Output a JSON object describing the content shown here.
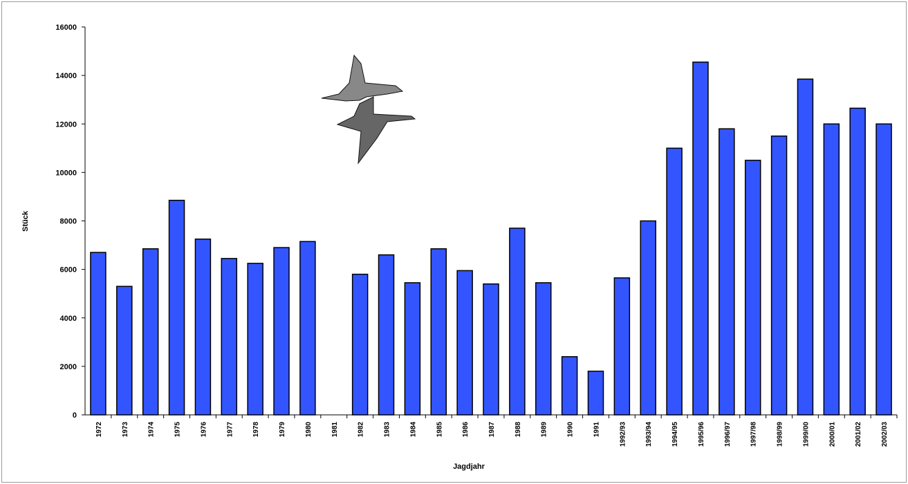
{
  "chart_data": {
    "type": "bar",
    "categories": [
      "1972",
      "1973",
      "1974",
      "1975",
      "1976",
      "1977",
      "1978",
      "1979",
      "1980",
      "1981",
      "1982",
      "1983",
      "1984",
      "1985",
      "1986",
      "1987",
      "1988",
      "1989",
      "1990",
      "1991",
      "1992/93",
      "1993/94",
      "1994/95",
      "1995/96",
      "1996/97",
      "1997/98",
      "1998/99",
      "1999/00",
      "2000/01",
      "2001/02",
      "2002/03"
    ],
    "values": [
      6700,
      5300,
      6850,
      8850,
      7250,
      6450,
      6250,
      6900,
      7150,
      null,
      5800,
      6600,
      5450,
      6850,
      5950,
      5400,
      7700,
      5450,
      2400,
      1800,
      5650,
      8000,
      11000,
      14550,
      11800,
      10500,
      11500,
      13850,
      12000,
      12650,
      12000
    ],
    "color": "#3355ff",
    "ylim": [
      0,
      16000
    ],
    "yticks": [
      0,
      2000,
      4000,
      6000,
      8000,
      10000,
      12000,
      14000,
      16000
    ],
    "xlabel": "Jagdjahr",
    "ylabel": "Stück"
  }
}
